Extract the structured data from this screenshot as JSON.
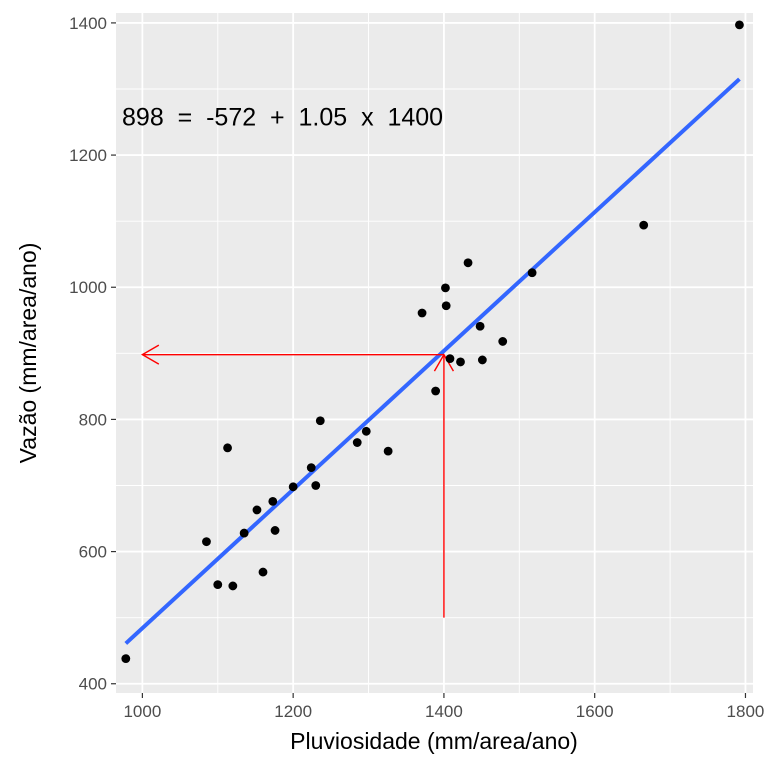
{
  "chart_data": {
    "type": "scatter",
    "xlabel": "Pluviosidade (mm/area/ano)",
    "ylabel": "Vazão (mm/area/ano)",
    "xlim": [
      965,
      1810
    ],
    "ylim": [
      386,
      1415
    ],
    "x_ticks": [
      1000,
      1200,
      1400,
      1600,
      1800
    ],
    "y_ticks": [
      400,
      600,
      800,
      1000,
      1200,
      1400
    ],
    "x_ticks_minor": [
      1100,
      1300,
      1500,
      1700
    ],
    "y_ticks_minor": [
      500,
      700,
      900,
      1100,
      1300
    ],
    "grid": true,
    "points": [
      {
        "x": 978,
        "y": 438
      },
      {
        "x": 1085,
        "y": 615
      },
      {
        "x": 1100,
        "y": 550
      },
      {
        "x": 1113,
        "y": 757
      },
      {
        "x": 1120,
        "y": 548
      },
      {
        "x": 1135,
        "y": 628
      },
      {
        "x": 1152,
        "y": 663
      },
      {
        "x": 1160,
        "y": 569
      },
      {
        "x": 1173,
        "y": 676
      },
      {
        "x": 1176,
        "y": 632
      },
      {
        "x": 1200,
        "y": 698
      },
      {
        "x": 1224,
        "y": 727
      },
      {
        "x": 1230,
        "y": 700
      },
      {
        "x": 1236,
        "y": 798
      },
      {
        "x": 1285,
        "y": 765
      },
      {
        "x": 1297,
        "y": 782
      },
      {
        "x": 1326,
        "y": 752
      },
      {
        "x": 1371,
        "y": 961
      },
      {
        "x": 1389,
        "y": 843
      },
      {
        "x": 1402,
        "y": 999
      },
      {
        "x": 1403,
        "y": 972
      },
      {
        "x": 1408,
        "y": 892
      },
      {
        "x": 1422,
        "y": 887
      },
      {
        "x": 1432,
        "y": 1037
      },
      {
        "x": 1448,
        "y": 941
      },
      {
        "x": 1451,
        "y": 890
      },
      {
        "x": 1478,
        "y": 918
      },
      {
        "x": 1517,
        "y": 1022
      },
      {
        "x": 1665,
        "y": 1094
      },
      {
        "x": 1792,
        "y": 1397
      }
    ],
    "fit_line": {
      "x": [
        978,
        1792
      ],
      "y": [
        461,
        1315
      ],
      "color": "#3366FF"
    },
    "annotation": {
      "text": "898  =  -572  +  1.05  x  1400",
      "x": 973,
      "y": 1245
    },
    "arrows": [
      {
        "from": [
          1400,
          500
        ],
        "to": [
          1400,
          898
        ],
        "color": "#FF0000"
      },
      {
        "from": [
          1400,
          898
        ],
        "to": [
          1000,
          898
        ],
        "color": "#FF0000"
      }
    ],
    "colors": {
      "panel": "#EBEBEB",
      "grid": "#FFFFFF",
      "point": "#000000"
    }
  }
}
